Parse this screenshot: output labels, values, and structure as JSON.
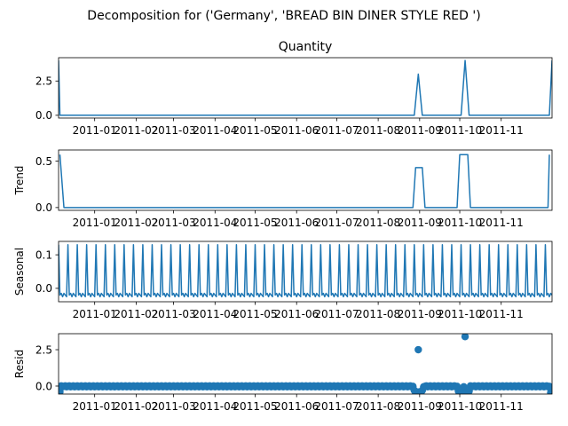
{
  "figure": {
    "suptitle": "Decomposition for ('Germany', 'BREAD BIN DINER STYLE RED ')"
  },
  "chart_data": [
    {
      "name": "observed",
      "type": "line",
      "title": "Quantity",
      "ylabel": "",
      "ylim": [
        -0.2,
        4.2
      ],
      "yticks": [
        0.0,
        2.5
      ],
      "ytick_labels": [
        "0.0",
        "2.5"
      ],
      "series": [
        {
          "color": "#1f77b4",
          "points": [
            [
              "2010-12-05",
              4.0
            ],
            [
              "2010-12-06",
              0.0
            ],
            [
              "2011-08-28",
              0.0
            ],
            [
              "2011-08-31",
              3.0
            ],
            [
              "2011-09-03",
              0.0
            ],
            [
              "2011-10-02",
              0.0
            ],
            [
              "2011-10-05",
              4.0
            ],
            [
              "2011-10-08",
              0.0
            ],
            [
              "2011-12-07",
              0.0
            ],
            [
              "2011-12-09",
              4.0
            ]
          ]
        }
      ]
    },
    {
      "name": "trend",
      "type": "line",
      "title": "",
      "ylabel": "Trend",
      "ylim": [
        -0.03,
        0.62
      ],
      "yticks": [
        0.0,
        0.5
      ],
      "ytick_labels": [
        "0.0",
        "0.5"
      ],
      "series": [
        {
          "color": "#1f77b4",
          "points": [
            [
              "2010-12-06",
              0.57
            ],
            [
              "2010-12-09",
              0.0
            ],
            [
              "2011-08-27",
              0.0
            ],
            [
              "2011-08-29",
              0.43
            ],
            [
              "2011-09-03",
              0.43
            ],
            [
              "2011-09-05",
              0.0
            ],
            [
              "2011-09-29",
              0.0
            ],
            [
              "2011-10-01",
              0.57
            ],
            [
              "2011-10-07",
              0.57
            ],
            [
              "2011-10-09",
              0.0
            ],
            [
              "2011-12-06",
              0.0
            ],
            [
              "2011-12-07",
              0.57
            ]
          ]
        }
      ]
    },
    {
      "name": "seasonal",
      "type": "line",
      "title": "",
      "ylabel": "Seasonal",
      "ylim": [
        -0.04,
        0.14
      ],
      "yticks": [
        0.0,
        0.1
      ],
      "ytick_labels": [
        "0.0",
        "0.1"
      ],
      "period_days": 7,
      "weekly_pattern": [
        0.13,
        -0.02,
        -0.015,
        -0.025,
        -0.015,
        -0.02,
        -0.025
      ],
      "series": [
        {
          "color": "#1f77b4"
        }
      ]
    },
    {
      "name": "resid",
      "type": "scatter",
      "title": "",
      "ylabel": "Resid",
      "ylim": [
        -0.55,
        3.6
      ],
      "yticks": [
        0.0,
        2.5
      ],
      "ytick_labels": [
        "0.0",
        "2.5"
      ],
      "series": [
        {
          "color": "#1f77b4",
          "baseline": -0.02,
          "outliers": [
            [
              "2010-12-05",
              -0.45
            ],
            [
              "2010-12-06",
              -0.4
            ],
            [
              "2011-08-28",
              -0.3
            ],
            [
              "2011-08-29",
              -0.45
            ],
            [
              "2011-08-30",
              -0.4
            ],
            [
              "2011-08-31",
              2.5
            ],
            [
              "2011-09-01",
              -0.4
            ],
            [
              "2011-09-02",
              -0.45
            ],
            [
              "2011-09-03",
              -0.3
            ],
            [
              "2011-09-30",
              -0.35
            ],
            [
              "2011-10-01",
              -0.45
            ],
            [
              "2011-10-02",
              -0.4
            ],
            [
              "2011-10-03",
              -0.45
            ],
            [
              "2011-10-05",
              3.4
            ],
            [
              "2011-10-06",
              -0.45
            ],
            [
              "2011-10-07",
              -0.4
            ],
            [
              "2011-10-08",
              -0.35
            ],
            [
              "2011-12-08",
              -0.45
            ],
            [
              "2011-12-09",
              -0.45
            ]
          ]
        }
      ]
    }
  ],
  "x_axis": {
    "range": [
      "2010-12-05",
      "2011-12-09"
    ],
    "ticks": [
      "2011-01-01",
      "2011-02-01",
      "2011-03-01",
      "2011-04-01",
      "2011-05-01",
      "2011-06-01",
      "2011-07-01",
      "2011-08-01",
      "2011-09-01",
      "2011-10-01",
      "2011-11-01"
    ],
    "tick_labels": [
      "2011-01",
      "2011-02",
      "2011-03",
      "2011-04",
      "2011-05",
      "2011-06",
      "2011-07",
      "2011-08",
      "2011-09",
      "2011-10",
      "2011-11"
    ]
  }
}
